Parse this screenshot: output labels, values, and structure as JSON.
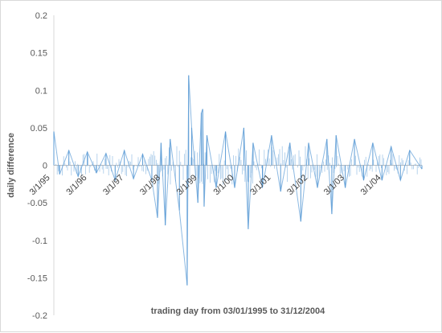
{
  "chart_data": {
    "type": "line",
    "title": "",
    "xlabel": "trading day from 03/01/1995 to 31/12/2004",
    "ylabel": "daily difference",
    "ylim": [
      -0.2,
      0.2
    ],
    "y_ticks": [
      "0.2",
      "0.15",
      "0.1",
      "0.05",
      "0",
      "-0.05",
      "-0.1",
      "-0.15",
      "-0.2"
    ],
    "x_tick_labels": [
      "3/1/95",
      "3/1/96",
      "3/1/97",
      "3/1/98",
      "3/1/99",
      "3/1/00",
      "3/1/01",
      "3/1/02",
      "3/1/03",
      "3/1/04"
    ],
    "x_range": [
      "1995-01-03",
      "2004-12-31"
    ],
    "grid": false,
    "legend": "none",
    "series": [
      {
        "color": "#5b9bd5",
        "x": [
          "1995-01-03",
          "1995-03-01",
          "1995-06-01",
          "1995-09-01",
          "1995-12-01",
          "1996-03-01",
          "1996-06-03",
          "1996-09-02",
          "1996-12-02",
          "1997-03-03",
          "1997-06-02",
          "1997-09-01",
          "1997-10-27",
          "1997-12-01",
          "1998-01-12",
          "1998-03-02",
          "1998-06-01",
          "1998-08-17",
          "1998-09-01",
          "1998-10-01",
          "1998-12-01",
          "1999-01-04",
          "1999-01-18",
          "1999-02-01",
          "1999-03-01",
          "1999-06-01",
          "1999-09-01",
          "1999-12-01",
          "2000-03-01",
          "2000-04-14",
          "2000-06-01",
          "2000-09-01",
          "2000-12-01",
          "2001-03-01",
          "2001-06-01",
          "2001-09-17",
          "2001-12-03",
          "2002-03-01",
          "2002-06-03",
          "2002-07-22",
          "2002-09-02",
          "2002-12-02",
          "2003-03-03",
          "2003-06-02",
          "2003-09-01",
          "2003-12-01",
          "2004-03-01",
          "2004-06-01",
          "2004-09-01",
          "2004-12-31"
        ],
        "values": [
          0.045,
          -0.012,
          0.02,
          -0.015,
          0.018,
          -0.01,
          0.016,
          -0.02,
          0.02,
          -0.018,
          0.015,
          -0.02,
          -0.07,
          0.03,
          -0.08,
          0.035,
          -0.06,
          -0.16,
          0.12,
          0.05,
          -0.05,
          0.07,
          0.075,
          -0.055,
          0.04,
          -0.03,
          0.045,
          -0.03,
          0.05,
          -0.085,
          0.03,
          -0.03,
          0.04,
          -0.035,
          0.03,
          -0.075,
          0.03,
          -0.03,
          0.035,
          -0.065,
          0.04,
          -0.03,
          0.035,
          -0.02,
          0.03,
          -0.02,
          0.025,
          -0.02,
          0.02,
          -0.005
        ]
      }
    ]
  }
}
